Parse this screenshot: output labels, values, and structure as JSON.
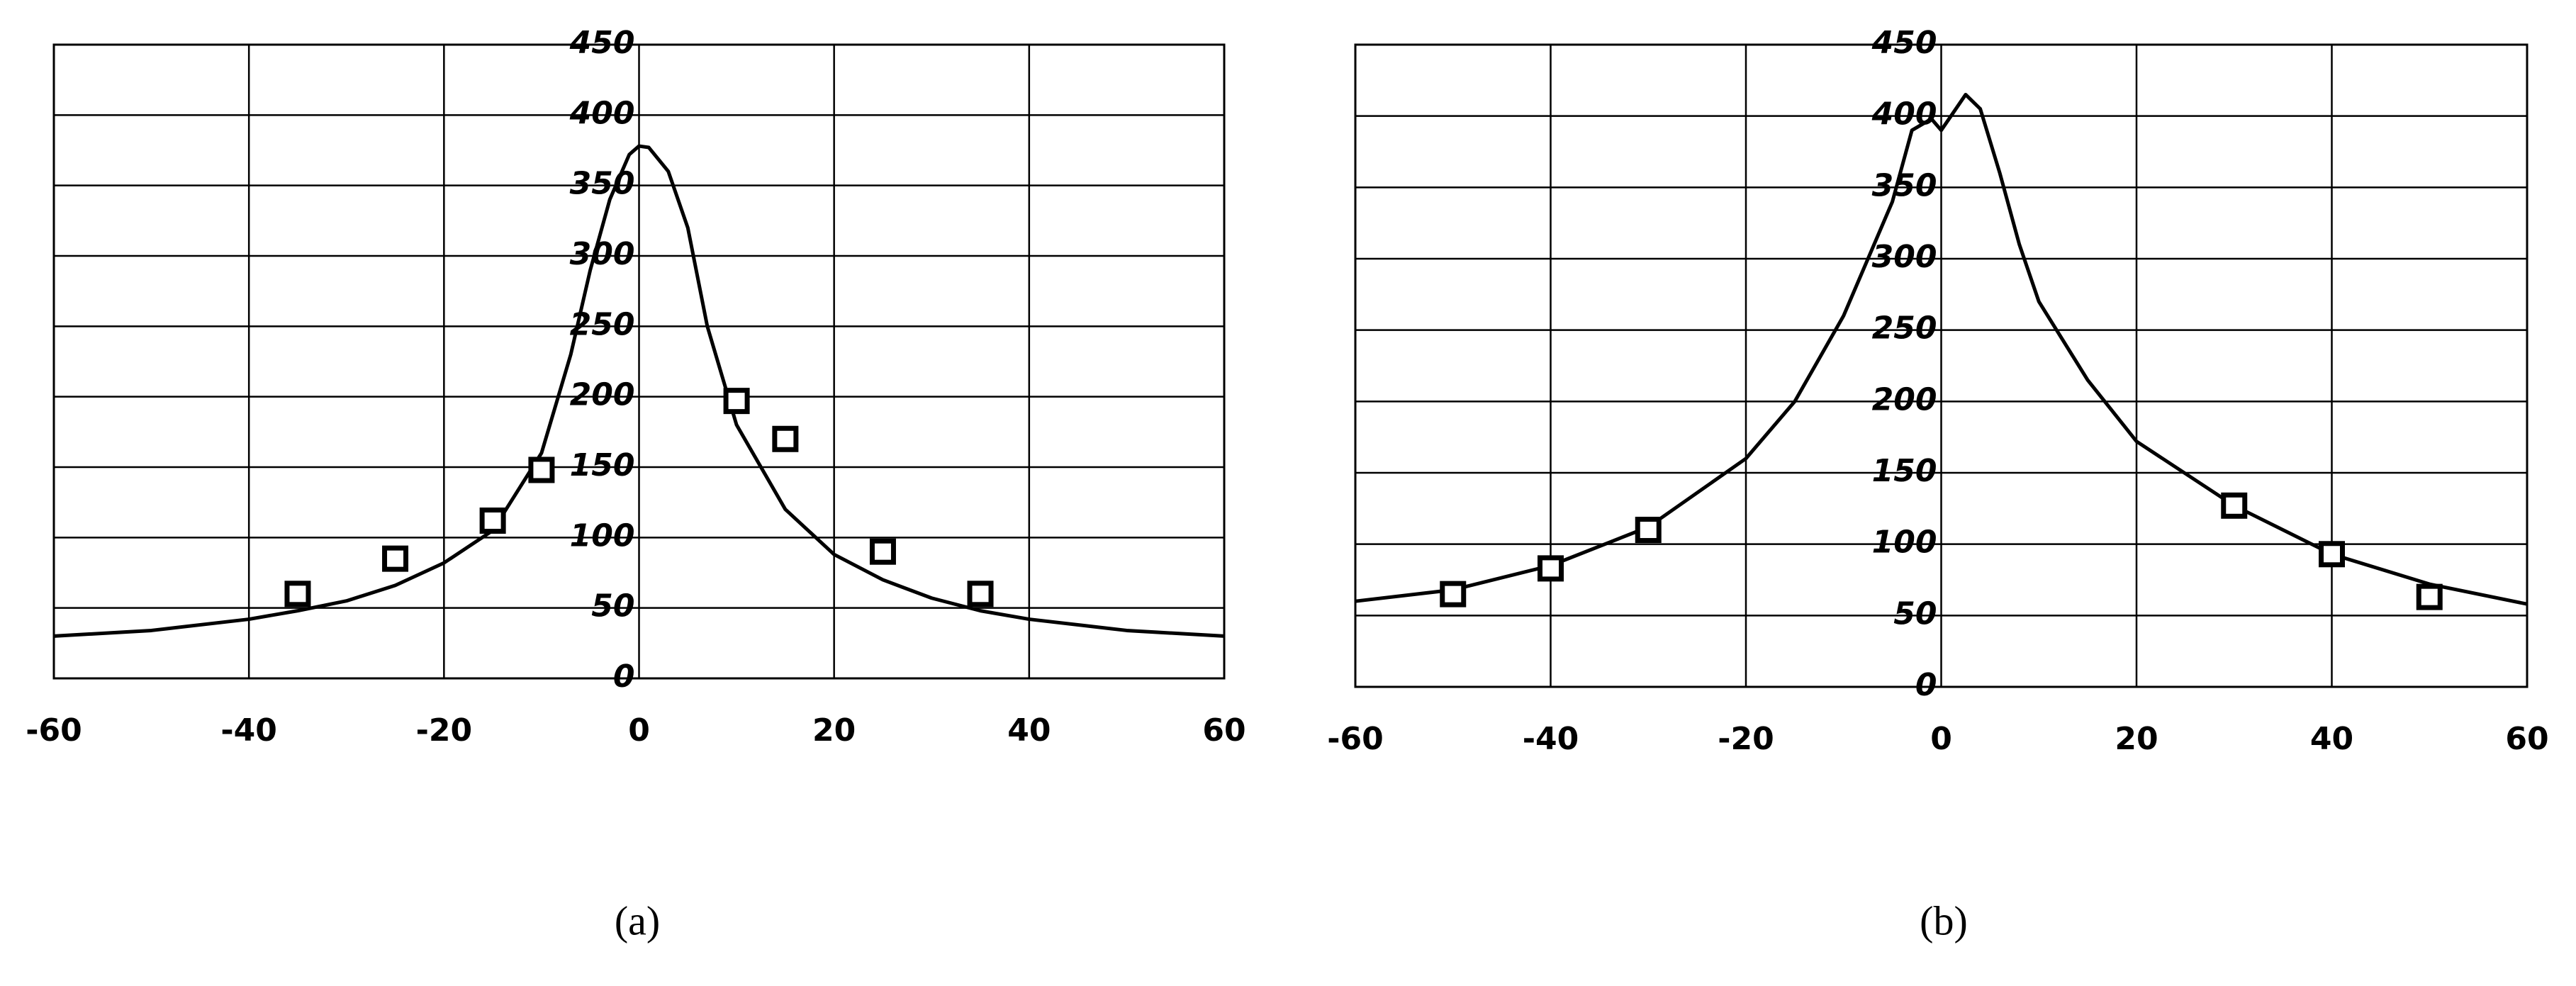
{
  "chart_data": [
    {
      "type": "line",
      "label": "(a)",
      "xlim": [
        -60,
        60
      ],
      "ylim": [
        0,
        450
      ],
      "xticks": [
        -60,
        -40,
        -20,
        0,
        20,
        40,
        60
      ],
      "yticks": [
        0,
        50,
        100,
        150,
        200,
        250,
        300,
        350,
        400,
        450
      ],
      "grid": true,
      "series": [
        {
          "type": "line",
          "color": "#000000",
          "x": [
            -60,
            -50,
            -40,
            -35,
            -30,
            -25,
            -20,
            -15,
            -10,
            -7,
            -5,
            -3,
            -1,
            0,
            1,
            3,
            5,
            7,
            10,
            15,
            20,
            25,
            30,
            35,
            40,
            50,
            60
          ],
          "values": [
            30,
            34,
            42,
            48,
            55,
            66,
            82,
            105,
            160,
            230,
            290,
            340,
            372,
            378,
            377,
            360,
            320,
            250,
            180,
            120,
            88,
            70,
            57,
            48,
            42,
            34,
            30
          ]
        },
        {
          "type": "scatter",
          "marker": "square",
          "color": "#000000",
          "x": [
            -35,
            -25,
            -15,
            -10,
            10,
            15,
            25,
            35
          ],
          "values": [
            60,
            85,
            112,
            148,
            197,
            170,
            90,
            60
          ]
        }
      ]
    },
    {
      "type": "line",
      "label": "(b)",
      "xlim": [
        -60,
        60
      ],
      "ylim": [
        0,
        450
      ],
      "xticks": [
        -60,
        -40,
        -20,
        0,
        20,
        40,
        60
      ],
      "yticks": [
        0,
        50,
        100,
        150,
        200,
        250,
        300,
        350,
        400,
        450
      ],
      "grid": true,
      "series": [
        {
          "type": "line",
          "color": "#000000",
          "x": [
            -60,
            -50,
            -40,
            -30,
            -20,
            -15,
            -10,
            -5,
            -3,
            -1,
            0,
            1,
            2.5,
            4,
            6,
            8,
            10,
            15,
            20,
            30,
            40,
            50,
            60
          ],
          "values": [
            60,
            68,
            85,
            112,
            160,
            200,
            260,
            340,
            390,
            398,
            390,
            400,
            415,
            405,
            360,
            310,
            270,
            215,
            172,
            127,
            93,
            72,
            58
          ]
        },
        {
          "type": "scatter",
          "marker": "square",
          "color": "#000000",
          "x": [
            -50,
            -40,
            -30,
            30,
            40,
            50
          ],
          "values": [
            65,
            83,
            110,
            127,
            93,
            63
          ]
        }
      ]
    }
  ]
}
